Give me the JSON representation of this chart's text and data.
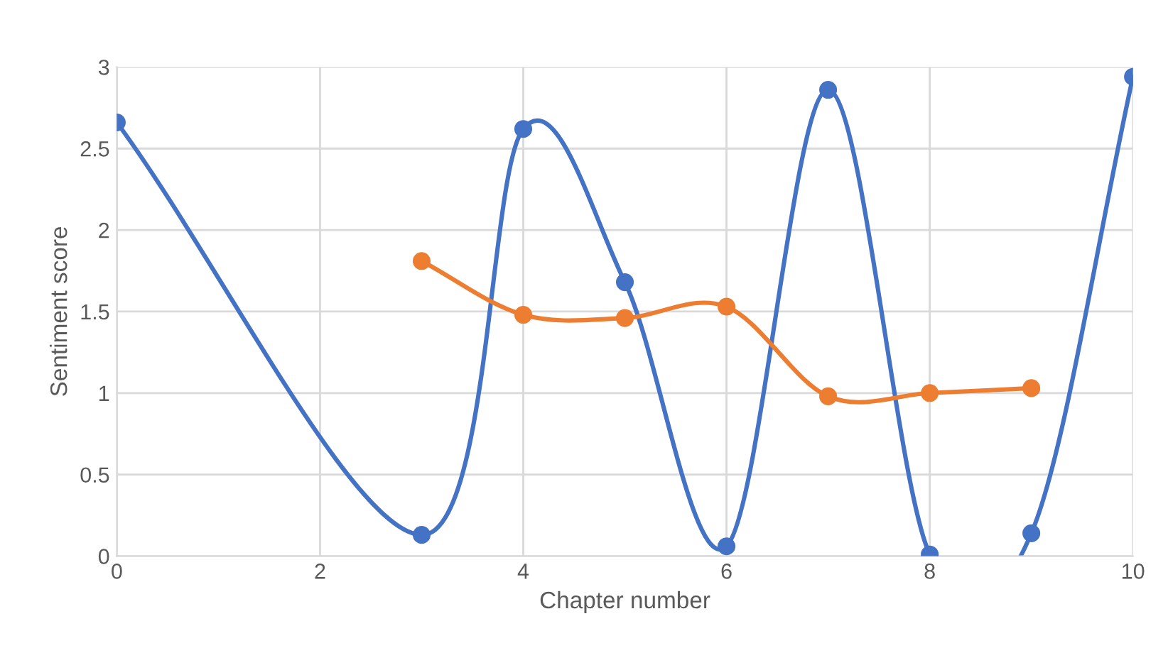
{
  "chart_data": {
    "type": "line",
    "xlabel": "Chapter number",
    "ylabel": "Sentiment score",
    "series": [
      {
        "color": "#4472c4",
        "x": [
          0,
          3,
          4,
          5,
          6,
          7,
          8,
          9,
          10
        ],
        "values": [
          2.66,
          0.13,
          2.62,
          1.68,
          0.06,
          2.86,
          0.01,
          0.14,
          2.94
        ]
      },
      {
        "color": "#ed7d31",
        "x": [
          3,
          4,
          5,
          6,
          7,
          8,
          9
        ],
        "values": [
          1.81,
          1.48,
          1.46,
          1.53,
          0.98,
          1.0,
          1.03
        ]
      }
    ],
    "xlim": [
      0,
      10
    ],
    "xticks": [
      0,
      2,
      4,
      6,
      8,
      10
    ],
    "ylim": [
      0,
      3
    ],
    "yticks": [
      0,
      0.5,
      1,
      1.5,
      2,
      2.5,
      3
    ],
    "grid": true,
    "marker": "circle",
    "line_style": "solid"
  }
}
